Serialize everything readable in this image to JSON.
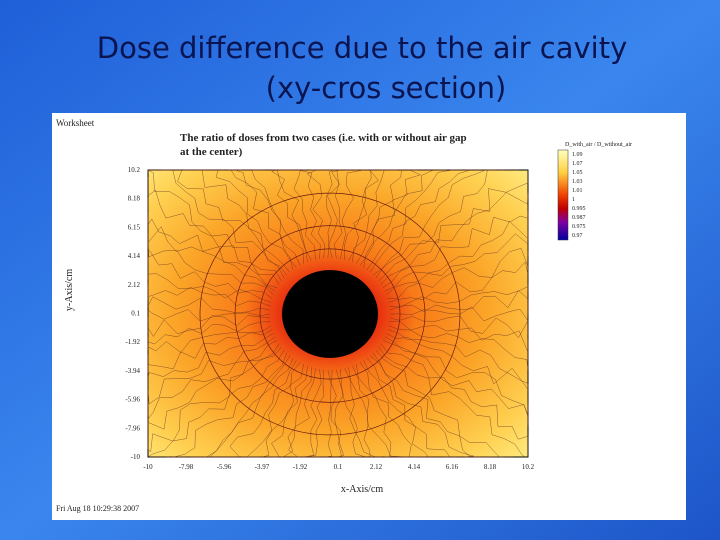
{
  "slide": {
    "title_line1": "Dose difference due to the air cavity",
    "title_line2": "(xy-cros section)"
  },
  "figure": {
    "window_label": "Worksheet",
    "plot_title_line1": "The ratio of doses from two cases (i.e. with or without air gap",
    "plot_title_line2": "at the center)",
    "legend_title": "D_with_air / D_without_air",
    "legend_labels": [
      "1.09",
      "1.07",
      "1.05",
      "1.03",
      "1.01",
      "1",
      "0.995",
      "0.987",
      "0.975",
      "0.97"
    ],
    "y_axis_label": "y-Axis/cm",
    "x_axis_label": "x-Axis/cm",
    "y_tick_labels": [
      "10.2",
      "8.18",
      "6.15",
      "4.14",
      "2.12",
      "0.1",
      "-1.92",
      "-3.94",
      "-5.96",
      "-7.96",
      "-10"
    ],
    "x_tick_labels": [
      "-10",
      "-7.98",
      "-5.96",
      "-3.97",
      "-1.92",
      "0.1",
      "2.12",
      "4.14",
      "6.16",
      "8.18",
      "10.2"
    ],
    "timestamp": "Fri Aug 18 10:29:38 2007"
  }
}
